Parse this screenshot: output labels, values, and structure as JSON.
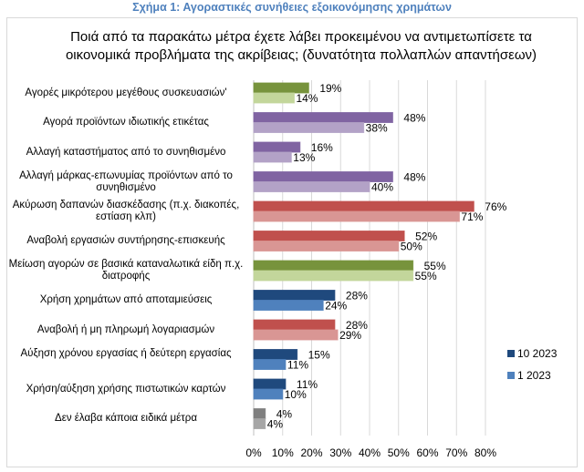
{
  "figure_title": "Σχήμα 1: Αγοραστικές συνήθειες εξοικονόμησης χρημάτων",
  "chart_data": {
    "type": "bar",
    "orientation": "horizontal",
    "title": "Ποιά από τα παρακάτω μέτρα έχετε λάβει προκειμένου να αντιμετωπίσετε τα οικονομικά προβλήματα της ακρίβειας; (δυνατότητα πολλαπλών απαντήσεων)",
    "categories": [
      "Αγορές μικρότερου μεγέθους συσκευασιών'",
      "Αγορά προϊόντων ιδιωτικής ετικέτας",
      "Αλλαγή καταστήματος από το συνηθισμένο",
      "Αλλαγή μάρκας-επωνυμίας προϊόντων από το συνηθισμένο",
      "Ακύρωση δαπανών διασκέδασης (π.χ. διακοπές, εστίαση κλπ)",
      "Αναβολή εργασιών συντήρησης-επισκευής",
      "Μείωση αγορών σε βασικά καταναλωτικά είδη π.χ. διατροφής",
      "Χρήση χρημάτων από αποταμιεύσεις",
      "Αναβολή ή μη πληρωμή λογαριασμών",
      "Αύξηση χρόνου εργασίας ή δεύτερη εργασίας",
      "Χρήση/αύξηση χρήσης πιστωτικών καρτών",
      "Δεν έλαβα κάποια ειδικά μέτρα"
    ],
    "series": [
      {
        "name": "10 2023",
        "values": [
          19,
          48,
          16,
          48,
          76,
          52,
          55,
          28,
          28,
          15,
          11,
          4
        ],
        "labels": [
          "19%",
          "48%",
          "16%",
          "48%",
          "76%",
          "52%",
          "55%",
          "28%",
          "28%",
          "15%",
          "11%",
          "4%"
        ]
      },
      {
        "name": "1 2023",
        "values": [
          14,
          38,
          13,
          40,
          71,
          50,
          55,
          24,
          29,
          11,
          10,
          4
        ],
        "labels": [
          "14%",
          "38%",
          "13%",
          "40%",
          "71%",
          "50%",
          "55%",
          "24%",
          "29%",
          "11%",
          "10%",
          "4%"
        ]
      }
    ],
    "category_colors": [
      [
        "#77933c",
        "#c3d69b"
      ],
      [
        "#8064a2",
        "#b3a2c7"
      ],
      [
        "#8064a2",
        "#b3a2c7"
      ],
      [
        "#8064a2",
        "#b3a2c7"
      ],
      [
        "#c0504d",
        "#d99694"
      ],
      [
        "#c0504d",
        "#d99694"
      ],
      [
        "#77933c",
        "#c3d69b"
      ],
      [
        "#1f497d",
        "#4f81bd"
      ],
      [
        "#c0504d",
        "#d99694"
      ],
      [
        "#1f497d",
        "#4f81bd"
      ],
      [
        "#1f497d",
        "#4f81bd"
      ],
      [
        "#7f7f7f",
        "#a6a6a6"
      ]
    ],
    "legend_colors": [
      "#1f497d",
      "#4f81bd"
    ],
    "xlim": [
      0,
      80
    ],
    "xticks": [
      "0%",
      "10%",
      "20%",
      "30%",
      "40%",
      "50%",
      "60%",
      "70%",
      "80%"
    ],
    "grid": true,
    "legend_position": "right"
  }
}
